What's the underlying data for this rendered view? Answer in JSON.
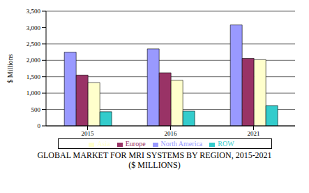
{
  "chart_data": {
    "type": "bar",
    "title": "GLOBAL MARKET FOR MRI SYSTEMS BY REGION, 2015-2021",
    "subtitle": "($ MILLIONS)",
    "y_label": "$ Millions",
    "categories": [
      "2015",
      "2016",
      "2021"
    ],
    "series": [
      {
        "name": "North America",
        "color": "#9999ff",
        "values": [
          2250,
          2350,
          3080
        ]
      },
      {
        "name": "Europe",
        "color": "#993366",
        "values": [
          1550,
          1620,
          2060
        ]
      },
      {
        "name": "Asia",
        "color": "#ffffcc",
        "values": [
          1320,
          1390,
          2020
        ]
      },
      {
        "name": "ROW",
        "color": "#33cccc",
        "values": [
          430,
          450,
          620
        ]
      }
    ],
    "ylim": [
      0,
      3500
    ],
    "yticks": [
      0,
      500,
      {
        "value": 1000,
        "label": "1,000"
      },
      {
        "value": 1500,
        "label": "1,500"
      },
      {
        "value": 2000,
        "label": "2,000"
      },
      {
        "value": 2500,
        "label": "2,500"
      },
      {
        "value": 3000,
        "label": "3,000"
      },
      {
        "value": 3500,
        "label": "3,500"
      }
    ],
    "grid": true,
    "legend": "bottom"
  }
}
